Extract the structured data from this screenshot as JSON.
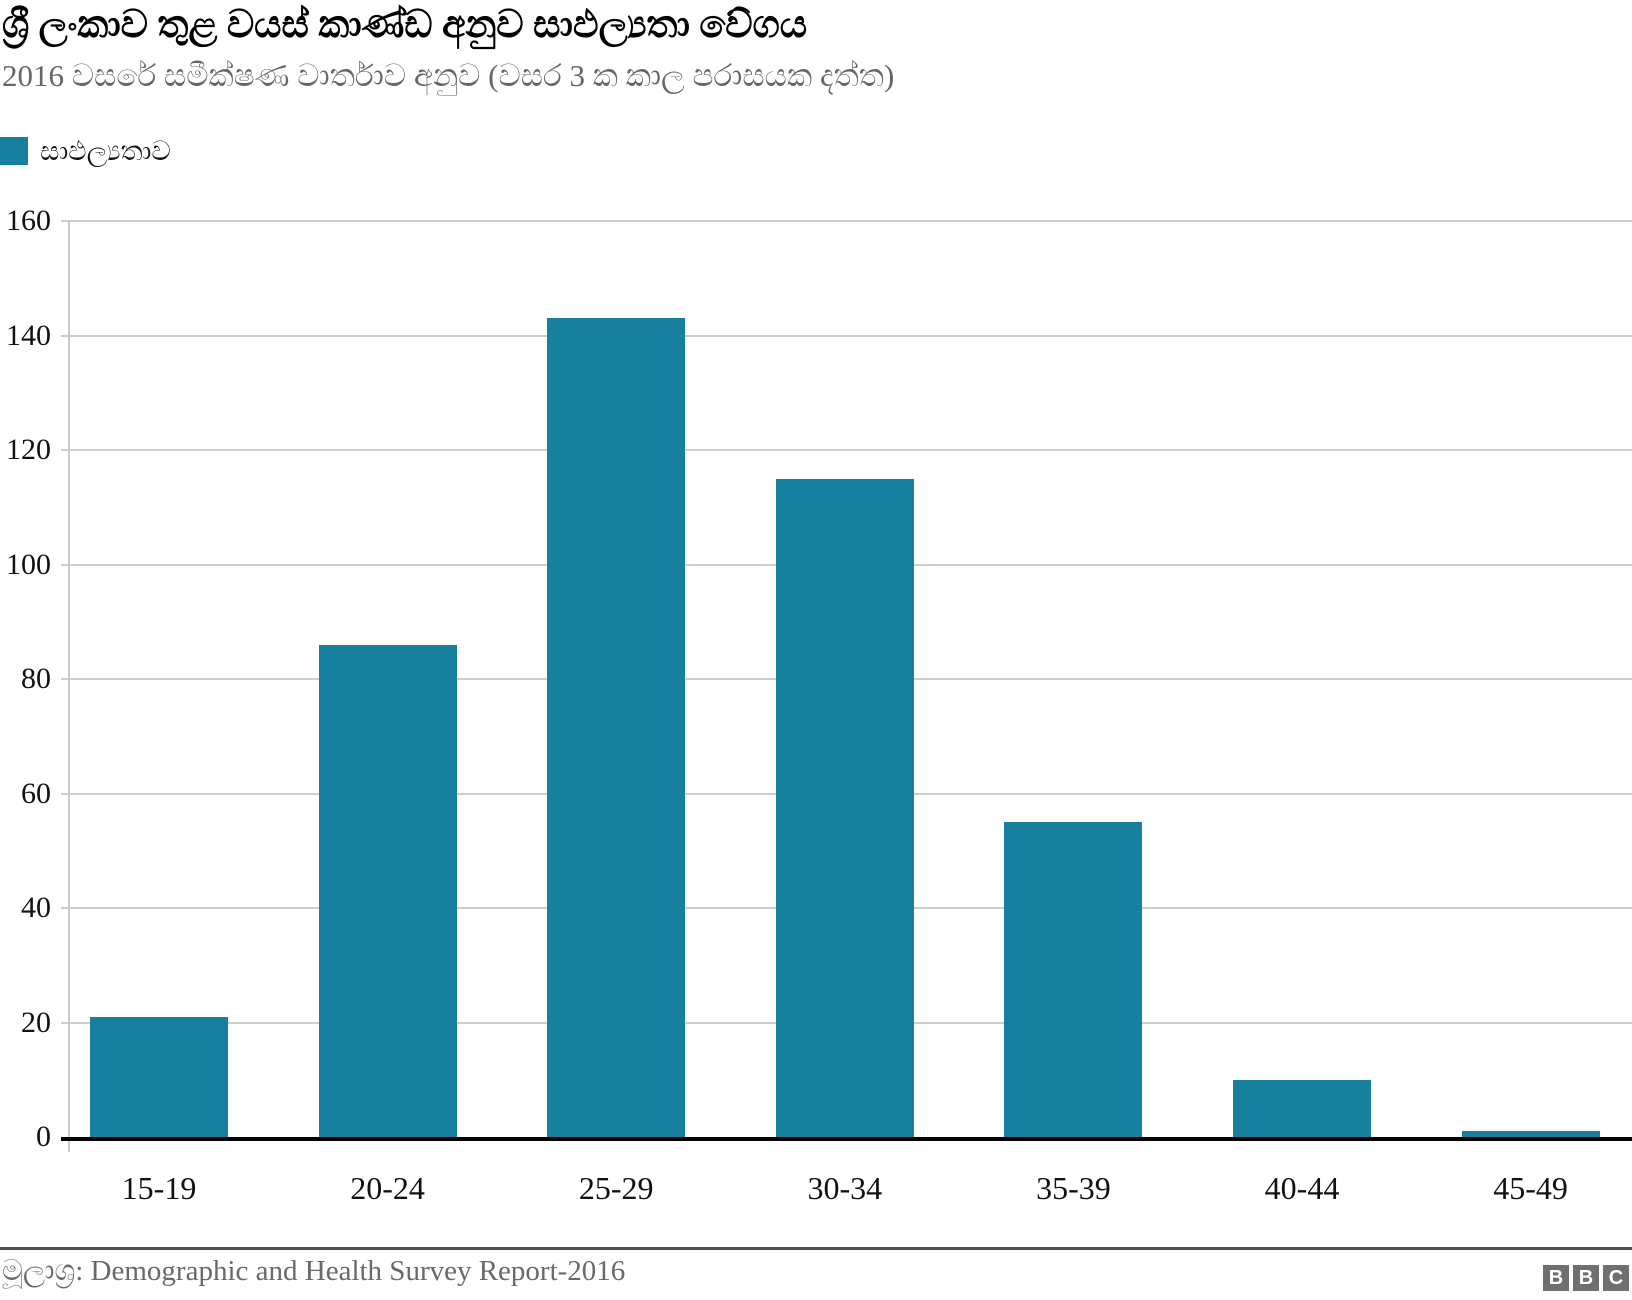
{
  "header": {
    "title": "ශ්‍රී ලංකාව තුළ වයස් කාණ්ඩ අනුව සාඵල්‍යතා වේගය",
    "subtitle": "2016 වසරේ සමීක්ෂණ වාර්තාව අනුව (වසර 3 ක කාල පරාසයක දත්ත)"
  },
  "legend": {
    "label": "සාඵල්‍යතාව"
  },
  "chart_data": {
    "type": "bar",
    "title": "ශ්‍රී ලංකාව තුළ වයස් කාණ්ඩ අනුව සාඵල්‍යතා වේගය",
    "subtitle": "2016 වසරේ සමීක්ෂණ වාර්තාව අනුව (වසර 3 ක කාල පරාසයක දත්ත)",
    "series_name": "සාඵල්‍යතාව",
    "categories": [
      "15-19",
      "20-24",
      "25-29",
      "30-34",
      "35-39",
      "40-44",
      "45-49"
    ],
    "values": [
      21,
      86,
      143,
      115,
      55,
      10,
      1
    ],
    "xlabel": "",
    "ylabel": "",
    "ylim": [
      0,
      160
    ],
    "ytick_step": 20,
    "ytick_labels": [
      "0",
      "20",
      "40",
      "60",
      "80",
      "100",
      "120",
      "140",
      "160"
    ],
    "grid": "horizontal",
    "legend_position": "top-left",
    "bar_color": "#17809E",
    "gridline_color": "#cdcdcd",
    "axis_color": "#000000"
  },
  "footer": {
    "source": "මූලාශ්‍ර: Demographic and Health Survey Report-2016",
    "logo_letters": [
      "B",
      "B",
      "C"
    ]
  }
}
